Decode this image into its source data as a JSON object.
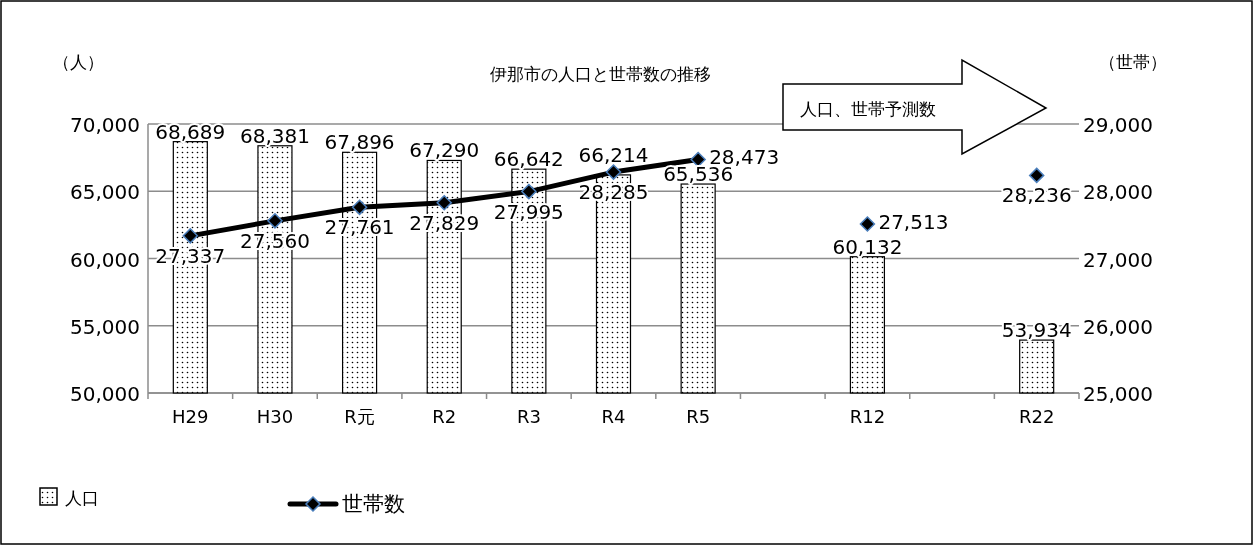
{
  "chart_data": {
    "type": "bar",
    "title": "伊那市の人口と世帯数の推移",
    "ylabel": "（人）",
    "y2label": "（世帯）",
    "annotations": [
      "人口、世帯予測数"
    ],
    "categories": [
      "H29",
      "H30",
      "R元",
      "R2",
      "R3",
      "R4",
      "R5",
      null,
      "R12",
      null,
      "R22"
    ],
    "series": [
      {
        "name": "人口",
        "color": "#000000",
        "values": [
          68689,
          68381,
          67896,
          67290,
          66642,
          66214,
          65536,
          null,
          60132,
          null,
          53934
        ],
        "value_labels": [
          "68,689",
          "68,381",
          "67,896",
          "67,290",
          "66,642",
          "66,214",
          "65,536",
          null,
          "60,132",
          null,
          "53,934"
        ]
      },
      {
        "name": "世帯数",
        "type": "line",
        "axis": "y2",
        "color": "#000000",
        "values": [
          27337,
          27560,
          27761,
          27829,
          27995,
          28285,
          28473,
          null,
          27513,
          null,
          28236
        ],
        "value_labels": [
          "27,337",
          "27,560",
          "27,761",
          "27,829",
          "27,995",
          "28,285",
          "28,473",
          null,
          "27,513",
          null,
          "28,236"
        ]
      }
    ],
    "ylim": [
      50000,
      70000
    ],
    "yticks": [
      {
        "value": 50000,
        "label": "50,000"
      },
      {
        "value": 55000,
        "label": "55,000"
      },
      {
        "value": 60000,
        "label": "60,000"
      },
      {
        "value": 65000,
        "label": "65,000"
      },
      {
        "value": 70000,
        "label": "70,000"
      }
    ],
    "y2lim": [
      25000,
      29000
    ],
    "y2ticks": [
      {
        "value": 25000,
        "label": "25,000"
      },
      {
        "value": 26000,
        "label": "26,000"
      },
      {
        "value": 27000,
        "label": "27,000"
      },
      {
        "value": 28000,
        "label": "28,000"
      },
      {
        "value": 29000,
        "label": "29,000"
      }
    ],
    "grid": "y",
    "legend": "bottom",
    "marker": "diamond"
  }
}
